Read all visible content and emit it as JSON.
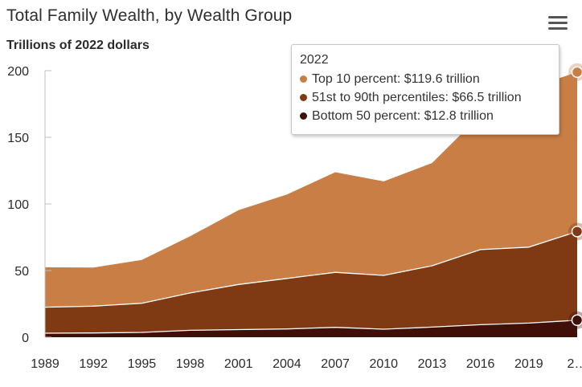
{
  "chart_data": {
    "type": "area",
    "stacked": true,
    "title": "Total Family Wealth, by Wealth Group",
    "subtitle": "Trillions of 2022 dollars",
    "xlabel": "",
    "ylabel": "",
    "ylim": [
      0,
      200
    ],
    "yticks": [
      0,
      50,
      100,
      150,
      200
    ],
    "categories": [
      "1989",
      "1992",
      "1995",
      "1998",
      "2001",
      "2004",
      "2007",
      "2010",
      "2013",
      "2016",
      "2019",
      "2…"
    ],
    "x": [
      1989,
      1992,
      1995,
      1998,
      2001,
      2004,
      2007,
      2010,
      2013,
      2016,
      2019,
      2022
    ],
    "series": [
      {
        "name": "Bottom 50 percent",
        "color": "#3f0f08",
        "values": [
          3.0,
          3.2,
          3.6,
          5.2,
          5.7,
          6.2,
          7.4,
          6.0,
          7.6,
          9.4,
          10.6,
          12.8
        ]
      },
      {
        "name": "51st to 90th percentiles",
        "color": "#7f3a14",
        "values": [
          19.5,
          20.1,
          21.9,
          28.0,
          33.9,
          37.9,
          41.3,
          40.4,
          46.0,
          56.3,
          57.0,
          66.5
        ]
      },
      {
        "name": "Top 10 percent",
        "color": "#c87e45",
        "values": [
          30.0,
          29.0,
          32.5,
          42.5,
          55.7,
          63.0,
          75.1,
          70.5,
          77.1,
          101.0,
          119.0,
          119.6
        ]
      }
    ],
    "grid": false,
    "legend": "none",
    "tooltip": {
      "title": "2022",
      "rows": [
        {
          "color": "#c87e45",
          "label": "Top 10 percent: $119.6 trillion"
        },
        {
          "color": "#7f3a14",
          "label": "51st to 90th percentiles: $66.5 trillion"
        },
        {
          "color": "#3f0f08",
          "label": "Bottom 50 percent: $12.8 trillion"
        }
      ]
    }
  },
  "menu_icon": "hamburger-menu-icon"
}
